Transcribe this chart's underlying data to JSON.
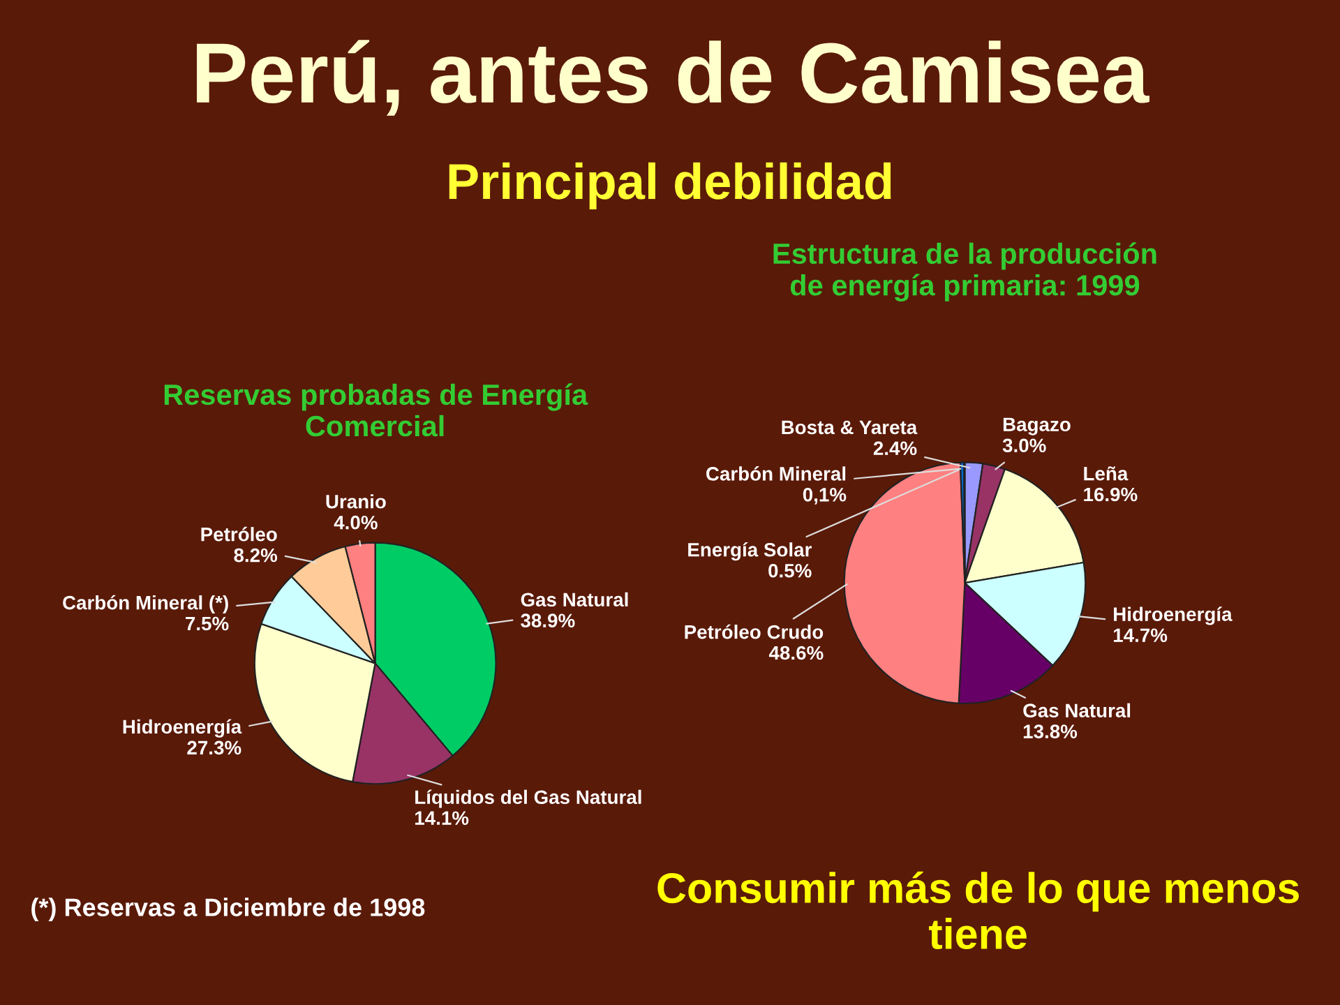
{
  "chart_data": [
    {
      "type": "pie",
      "title": "Reservas probadas de Energía\nComercial",
      "categories": [
        "Gas Natural",
        "Líquidos del Gas Natural",
        "Hidroenergía",
        "Carbón Mineral (*)",
        "Petróleo",
        "Uranio"
      ],
      "values": [
        38.9,
        14.1,
        27.3,
        7.5,
        8.2,
        4.0
      ],
      "value_labels": [
        "38.9%",
        "14.1%",
        "27.3%",
        "7.5%",
        "8.2%",
        "4.0%"
      ],
      "colors": [
        "#00cc66",
        "#993366",
        "#ffffcc",
        "#ccffff",
        "#ffcc99",
        "#ff8080"
      ],
      "annotations": [
        "Perú, antes de Camisea",
        "Principal debilidad",
        "(*) Reservas a Diciembre de 1998"
      ]
    },
    {
      "type": "pie",
      "title": "Estructura de la producción\nde energía primaria: 1999",
      "categories": [
        "Bosta & Yareta",
        "Bagazo",
        "Leña",
        "Hidroenergía",
        "Gas Natural",
        "Petróleo Crudo",
        "Energía Solar",
        "Carbón Mineral"
      ],
      "values": [
        2.4,
        3.0,
        16.9,
        14.7,
        13.8,
        48.6,
        0.5,
        0.1
      ],
      "value_labels": [
        "2.4%",
        "3.0%",
        "16.9%",
        "14.7%",
        "13.8%",
        "48.6%",
        "0.5%",
        "0,1%"
      ],
      "colors": [
        "#9999ff",
        "#993366",
        "#ffffcc",
        "#ccffff",
        "#660066",
        "#ff8080",
        "#0066cc",
        "#000080"
      ],
      "annotations": [
        "Consumir más de lo que menos tiene"
      ]
    }
  ]
}
